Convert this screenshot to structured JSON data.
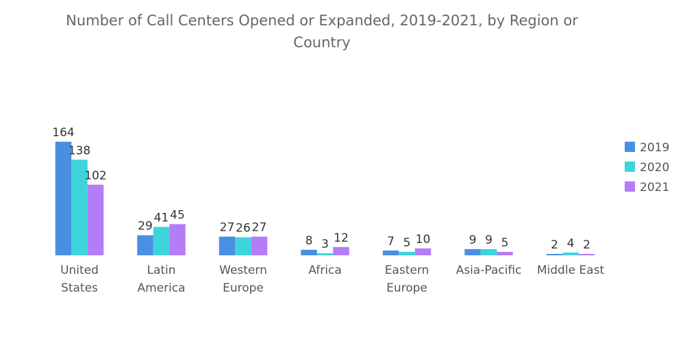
{
  "chart_data": {
    "type": "bar",
    "title": "Number of Call Centers Opened or Expanded, 2019-2021, by Region or Country",
    "xlabel": "",
    "ylabel": "",
    "ylim": [
      0,
      164
    ],
    "grid": false,
    "legend_position": "right",
    "categories": [
      [
        "United",
        "States"
      ],
      [
        "Latin",
        "America"
      ],
      [
        "Western",
        "Europe"
      ],
      [
        "Africa"
      ],
      [
        "Eastern",
        "Europe"
      ],
      [
        "Asia-Pacific"
      ],
      [
        "Middle East"
      ]
    ],
    "series": [
      {
        "name": "2019",
        "color": "#4a90e2",
        "values": [
          164,
          29,
          27,
          8,
          7,
          9,
          2
        ]
      },
      {
        "name": "2020",
        "color": "#3dd4dc",
        "values": [
          138,
          41,
          26,
          3,
          5,
          9,
          4
        ]
      },
      {
        "name": "2021",
        "color": "#b57cf7",
        "values": [
          102,
          45,
          27,
          12,
          10,
          5,
          2
        ]
      }
    ]
  }
}
